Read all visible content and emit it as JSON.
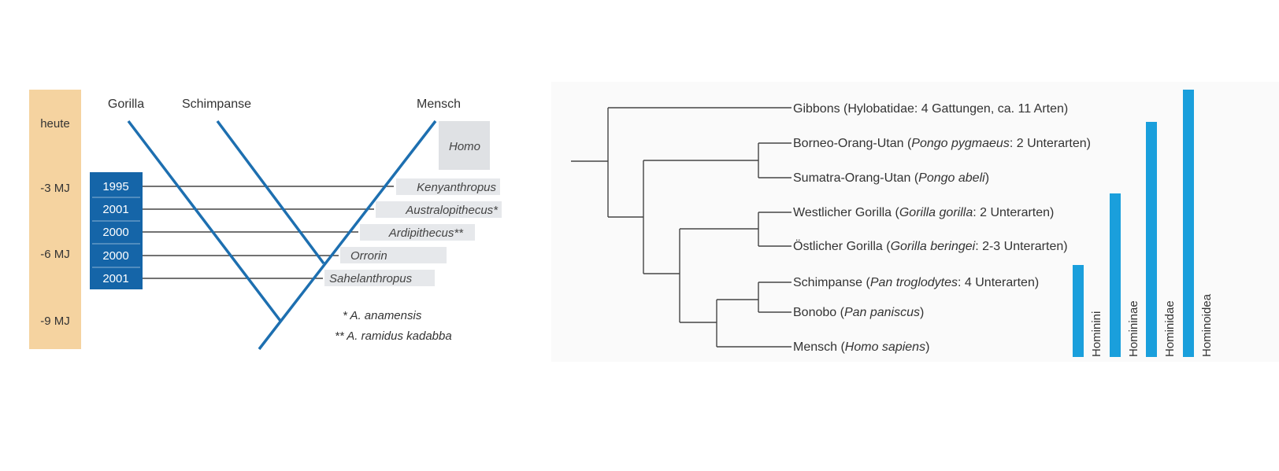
{
  "left": {
    "time_labels": [
      "heute",
      "-3 MJ",
      "-6 MJ",
      "-9 MJ"
    ],
    "lineages": [
      "Gorilla",
      "Schimpanse",
      "Mensch"
    ],
    "homo_label": "Homo",
    "fossils": [
      {
        "year": "1995",
        "name": "Kenyanthropus"
      },
      {
        "year": "2001",
        "name": "Australopithecus*"
      },
      {
        "year": "2000",
        "name": "Ardipithecus**"
      },
      {
        "year": "2000",
        "name": "Orrorin"
      },
      {
        "year": "2001",
        "name": "Sahelanthropus"
      }
    ],
    "footnotes": [
      "* A. anamensis",
      "** A. ramidus kadabba"
    ]
  },
  "right": {
    "taxa": [
      {
        "pre": "Gibbons (Hylobatidae: 4 Gattungen, ca. 11 Arten)",
        "species": "",
        "post": ""
      },
      {
        "pre": "Borneo-Orang-Utan (",
        "species": "Pongo pygmaeus",
        "post": ": 2 Unterarten)"
      },
      {
        "pre": "Sumatra-Orang-Utan (",
        "species": "Pongo abeli",
        "post": ")"
      },
      {
        "pre": "Westlicher Gorilla (",
        "species": "Gorilla gorilla",
        "post": ": 2 Unterarten)"
      },
      {
        "pre": "Östlicher Gorilla (",
        "species": "Gorilla beringei",
        "post": ": 2-3 Unterarten)"
      },
      {
        "pre": "Schimpanse (",
        "species": "Pan troglodytes",
        "post": ": 4 Unterarten)"
      },
      {
        "pre": "Bonobo (",
        "species": "Pan paniscus",
        "post": ")"
      },
      {
        "pre": "Mensch (",
        "species": "Homo sapiens",
        "post": ")"
      }
    ],
    "groups": [
      "Hominini",
      "Homininae",
      "Hominidae",
      "Hominoidea"
    ]
  },
  "colors": {
    "timebar": "#f5d3a0",
    "lineage": "#1d6fb0",
    "yearbox": "#1565a8",
    "fossilbox": "#e6e8eb",
    "groupbar": "#1a9fdc",
    "tree": "#444444"
  }
}
